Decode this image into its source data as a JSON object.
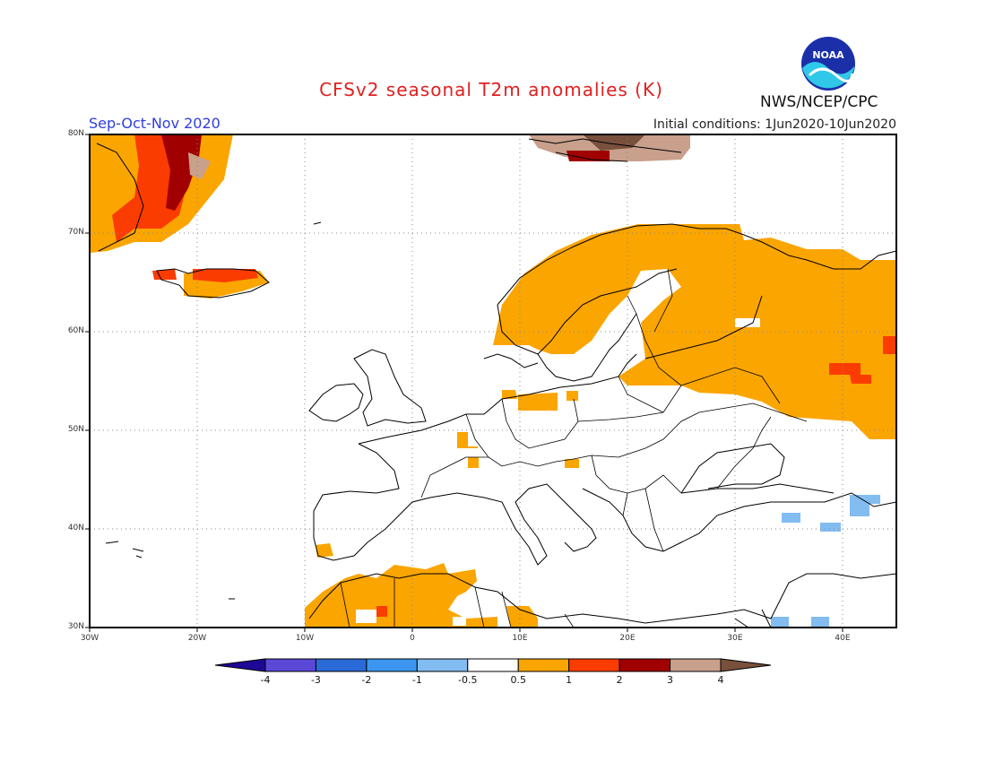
{
  "header": {
    "title": "CFSv2 seasonal T2m anomalies (K)",
    "season": "Sep-Oct-Nov 2020",
    "initial_conditions": "Initial conditions: 1Jun2020-10Jun2020",
    "agency": "NWS/NCEP/CPC",
    "logo_text": "NOAA",
    "logo_icon": "noaa-logo-icon"
  },
  "map": {
    "lat_ticks": [
      "80N",
      "70N",
      "60N",
      "50N",
      "40N",
      "30N"
    ],
    "lon_ticks": [
      "30W",
      "20W",
      "10W",
      "0",
      "10E",
      "20E",
      "30E",
      "40E"
    ],
    "extent": {
      "lon": [
        -30,
        45
      ],
      "lat": [
        30,
        80
      ]
    },
    "grid": true
  },
  "colorbar": {
    "levels": [
      "-4",
      "-3",
      "-2",
      "-1",
      "-0.5",
      "0.5",
      "1",
      "2",
      "3",
      "4"
    ],
    "colors": [
      "#1e0896",
      "#5a48d6",
      "#2a6ad6",
      "#3c96f0",
      "#82bcf0",
      "#ffffff",
      "#fba500",
      "#fb3c00",
      "#a00000",
      "#c8a08c",
      "#78503c"
    ]
  }
}
